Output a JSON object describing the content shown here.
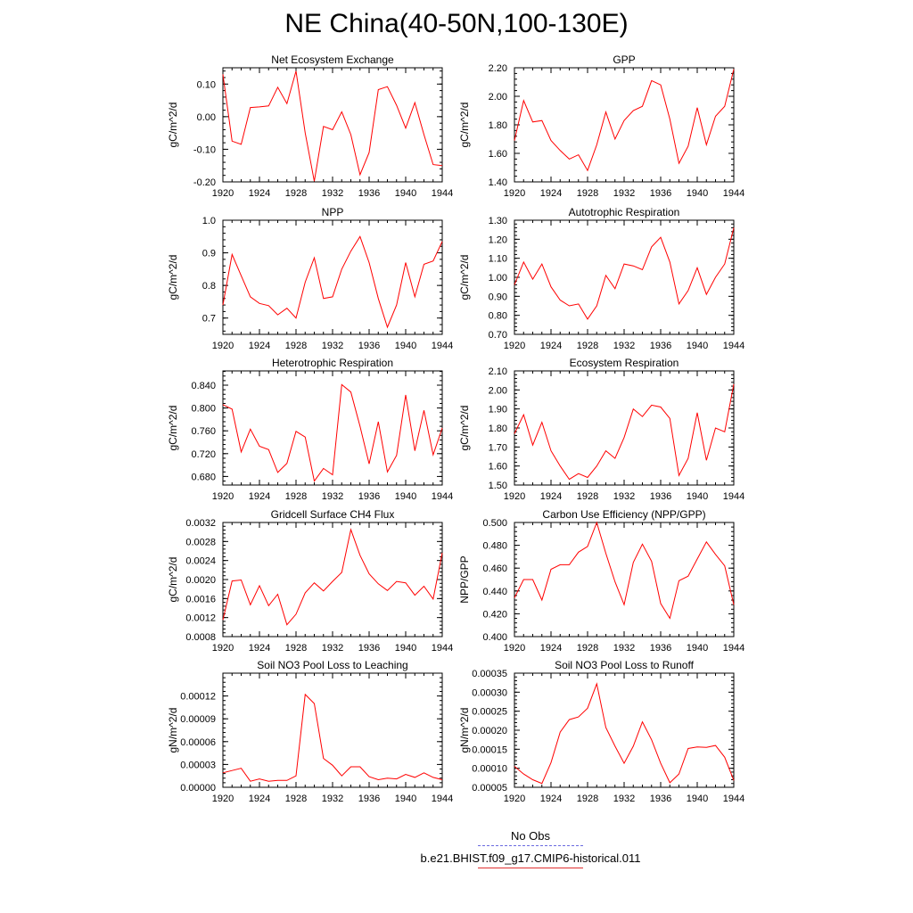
{
  "title": "NE China(40-50N,100-130E)",
  "colors": {
    "series": "#ff0000",
    "axis": "#000000",
    "obs": "#6a6ae0"
  },
  "legend": {
    "obs_label": "No Obs",
    "model_label": "b.e21.BHIST.f09_g17.CMIP6-historical.011"
  },
  "chart_data": [
    {
      "type": "line",
      "title": "Net Ecosystem Exchange",
      "ylabel": "gC/m^2/d",
      "xlim": [
        1920,
        1944
      ],
      "xticks": [
        "1920",
        "1924",
        "1928",
        "1932",
        "1936",
        "1940",
        "1944"
      ],
      "ylim": [
        -0.2,
        0.15
      ],
      "yticks": [
        "-0.20",
        "-0.10",
        "0.00",
        "0.10"
      ],
      "x": [
        1920,
        1921,
        1922,
        1923,
        1924,
        1925,
        1926,
        1927,
        1928,
        1929,
        1930,
        1931,
        1932,
        1933,
        1934,
        1935,
        1936,
        1937,
        1938,
        1939,
        1940,
        1941,
        1942,
        1943,
        1944
      ],
      "series": [
        {
          "name": "b.e21.BHIST.f09_g17.CMIP6-historical.011",
          "values": [
            0.13,
            -0.075,
            -0.085,
            0.028,
            0.03,
            0.033,
            0.09,
            0.04,
            0.14,
            -0.05,
            -0.198,
            -0.03,
            -0.04,
            0.015,
            -0.055,
            -0.178,
            -0.11,
            0.083,
            0.092,
            0.035,
            -0.035,
            0.043,
            -0.055,
            -0.147,
            -0.15
          ]
        }
      ]
    },
    {
      "type": "line",
      "title": "GPP",
      "ylabel": "gC/m^2/d",
      "xlim": [
        1920,
        1944
      ],
      "xticks": [
        "1920",
        "1924",
        "1928",
        "1932",
        "1936",
        "1940",
        "1944"
      ],
      "ylim": [
        1.4,
        2.2
      ],
      "yticks": [
        "1.40",
        "1.60",
        "1.80",
        "2.00",
        "2.20"
      ],
      "x": [
        1920,
        1921,
        1922,
        1923,
        1924,
        1925,
        1926,
        1927,
        1928,
        1929,
        1930,
        1931,
        1932,
        1933,
        1934,
        1935,
        1936,
        1937,
        1938,
        1939,
        1940,
        1941,
        1942,
        1943,
        1944
      ],
      "series": [
        {
          "name": "b.e21.BHIST.f09_g17.CMIP6-historical.011",
          "values": [
            1.69,
            1.97,
            1.82,
            1.83,
            1.69,
            1.62,
            1.56,
            1.59,
            1.48,
            1.66,
            1.89,
            1.7,
            1.83,
            1.9,
            1.93,
            2.11,
            2.08,
            1.84,
            1.53,
            1.65,
            1.92,
            1.66,
            1.86,
            1.93,
            2.19
          ]
        }
      ]
    },
    {
      "type": "line",
      "title": "NPP",
      "ylabel": "gC/m^2/d",
      "xlim": [
        1920,
        1944
      ],
      "xticks": [
        "1920",
        "1924",
        "1928",
        "1932",
        "1936",
        "1940",
        "1944"
      ],
      "ylim": [
        0.65,
        1.0
      ],
      "yticks": [
        "0.7",
        "0.8",
        "0.9",
        "1.0"
      ],
      "x": [
        1920,
        1921,
        1922,
        1923,
        1924,
        1925,
        1926,
        1927,
        1928,
        1929,
        1930,
        1931,
        1932,
        1933,
        1934,
        1935,
        1936,
        1937,
        1938,
        1939,
        1940,
        1941,
        1942,
        1943,
        1944
      ],
      "series": [
        {
          "name": "b.e21.BHIST.f09_g17.CMIP6-historical.011",
          "values": [
            0.74,
            0.895,
            0.83,
            0.765,
            0.745,
            0.738,
            0.71,
            0.73,
            0.7,
            0.81,
            0.885,
            0.76,
            0.765,
            0.85,
            0.905,
            0.95,
            0.87,
            0.76,
            0.672,
            0.74,
            0.87,
            0.765,
            0.865,
            0.875,
            0.935
          ]
        }
      ]
    },
    {
      "type": "line",
      "title": "Autotrophic Respiration",
      "ylabel": "gC/m^2/d",
      "xlim": [
        1920,
        1944
      ],
      "xticks": [
        "1920",
        "1924",
        "1928",
        "1932",
        "1936",
        "1940",
        "1944"
      ],
      "ylim": [
        0.7,
        1.3
      ],
      "yticks": [
        "0.70",
        "0.80",
        "0.90",
        "1.00",
        "1.10",
        "1.20",
        "1.30"
      ],
      "x": [
        1920,
        1921,
        1922,
        1923,
        1924,
        1925,
        1926,
        1927,
        1928,
        1929,
        1930,
        1931,
        1932,
        1933,
        1934,
        1935,
        1936,
        1937,
        1938,
        1939,
        1940,
        1941,
        1942,
        1943,
        1944
      ],
      "series": [
        {
          "name": "b.e21.BHIST.f09_g17.CMIP6-historical.011",
          "values": [
            0.96,
            1.08,
            0.99,
            1.07,
            0.95,
            0.88,
            0.85,
            0.86,
            0.78,
            0.85,
            1.01,
            0.94,
            1.07,
            1.06,
            1.04,
            1.16,
            1.21,
            1.08,
            0.86,
            0.93,
            1.05,
            0.91,
            1.0,
            1.07,
            1.26
          ]
        }
      ]
    },
    {
      "type": "line",
      "title": "Heterotrophic Respiration",
      "ylabel": "gC/m^2/d",
      "xlim": [
        1920,
        1944
      ],
      "xticks": [
        "1920",
        "1924",
        "1928",
        "1932",
        "1936",
        "1940",
        "1944"
      ],
      "ylim": [
        0.665,
        0.865
      ],
      "yticks": [
        "0.680",
        "0.720",
        "0.760",
        "0.800",
        "0.840"
      ],
      "x": [
        1920,
        1921,
        1922,
        1923,
        1924,
        1925,
        1926,
        1927,
        1928,
        1929,
        1930,
        1931,
        1932,
        1933,
        1934,
        1935,
        1936,
        1937,
        1938,
        1939,
        1940,
        1941,
        1942,
        1943,
        1944
      ],
      "series": [
        {
          "name": "b.e21.BHIST.f09_g17.CMIP6-historical.011",
          "values": [
            0.806,
            0.798,
            0.723,
            0.763,
            0.733,
            0.727,
            0.687,
            0.703,
            0.759,
            0.749,
            0.672,
            0.694,
            0.683,
            0.841,
            0.828,
            0.768,
            0.702,
            0.776,
            0.688,
            0.717,
            0.823,
            0.725,
            0.796,
            0.718,
            0.765
          ]
        }
      ]
    },
    {
      "type": "line",
      "title": "Ecosystem Respiration",
      "ylabel": "gC/m^2/d",
      "xlim": [
        1920,
        1944
      ],
      "xticks": [
        "1920",
        "1924",
        "1928",
        "1932",
        "1936",
        "1940",
        "1944"
      ],
      "ylim": [
        1.5,
        2.1
      ],
      "yticks": [
        "1.50",
        "1.60",
        "1.70",
        "1.80",
        "1.90",
        "2.00",
        "2.10"
      ],
      "x": [
        1920,
        1921,
        1922,
        1923,
        1924,
        1925,
        1926,
        1927,
        1928,
        1929,
        1930,
        1931,
        1932,
        1933,
        1934,
        1935,
        1936,
        1937,
        1938,
        1939,
        1940,
        1941,
        1942,
        1943,
        1944
      ],
      "series": [
        {
          "name": "b.e21.BHIST.f09_g17.CMIP6-historical.011",
          "values": [
            1.77,
            1.87,
            1.71,
            1.83,
            1.68,
            1.6,
            1.53,
            1.56,
            1.54,
            1.6,
            1.68,
            1.64,
            1.75,
            1.9,
            1.86,
            1.92,
            1.91,
            1.85,
            1.55,
            1.64,
            1.88,
            1.63,
            1.8,
            1.78,
            2.03
          ]
        }
      ]
    },
    {
      "type": "line",
      "title": "Gridcell Surface CH4 Flux",
      "ylabel": "gC/m^2/d",
      "xlim": [
        1920,
        1944
      ],
      "xticks": [
        "1920",
        "1924",
        "1928",
        "1932",
        "1936",
        "1940",
        "1944"
      ],
      "ylim": [
        0.0008,
        0.0032
      ],
      "yticks": [
        "0.0008",
        "0.0012",
        "0.0016",
        "0.0020",
        "0.0024",
        "0.0028",
        "0.0032"
      ],
      "x": [
        1920,
        1921,
        1922,
        1923,
        1924,
        1925,
        1926,
        1927,
        1928,
        1929,
        1930,
        1931,
        1932,
        1933,
        1934,
        1935,
        1936,
        1937,
        1938,
        1939,
        1940,
        1941,
        1942,
        1943,
        1944
      ],
      "series": [
        {
          "name": "b.e21.BHIST.f09_g17.CMIP6-historical.011",
          "values": [
            0.00115,
            0.00197,
            0.00199,
            0.00147,
            0.00187,
            0.00145,
            0.00169,
            0.00105,
            0.00127,
            0.00172,
            0.00193,
            0.00176,
            0.00196,
            0.00215,
            0.00305,
            0.00251,
            0.00212,
            0.00191,
            0.00177,
            0.00196,
            0.00193,
            0.00167,
            0.00186,
            0.00159,
            0.00256
          ]
        }
      ]
    },
    {
      "type": "line",
      "title": "Carbon Use Efficiency (NPP/GPP)",
      "ylabel": "NPP/GPP",
      "xlim": [
        1920,
        1944
      ],
      "xticks": [
        "1920",
        "1924",
        "1928",
        "1932",
        "1936",
        "1940",
        "1944"
      ],
      "ylim": [
        0.4,
        0.5
      ],
      "yticks": [
        "0.400",
        "0.420",
        "0.440",
        "0.460",
        "0.480",
        "0.500"
      ],
      "x": [
        1920,
        1921,
        1922,
        1923,
        1924,
        1925,
        1926,
        1927,
        1928,
        1929,
        1930,
        1931,
        1932,
        1933,
        1934,
        1935,
        1936,
        1937,
        1938,
        1939,
        1940,
        1941,
        1942,
        1943,
        1944
      ],
      "series": [
        {
          "name": "b.e21.BHIST.f09_g17.CMIP6-historical.011",
          "values": [
            0.434,
            0.45,
            0.45,
            0.432,
            0.459,
            0.463,
            0.463,
            0.474,
            0.479,
            0.5,
            0.473,
            0.448,
            0.428,
            0.465,
            0.481,
            0.466,
            0.429,
            0.416,
            0.449,
            0.453,
            0.468,
            0.483,
            0.472,
            0.462,
            0.428
          ]
        }
      ]
    },
    {
      "type": "line",
      "title": "Soil NO3 Pool Loss to Leaching",
      "ylabel": "gN/m^2/d",
      "xlim": [
        1920,
        1944
      ],
      "xticks": [
        "1920",
        "1924",
        "1928",
        "1932",
        "1936",
        "1940",
        "1944"
      ],
      "ylim": [
        0.0,
        0.00015
      ],
      "yticks": [
        "0.00000",
        "0.00003",
        "0.00006",
        "0.00009",
        "0.00012"
      ],
      "x": [
        1920,
        1921,
        1922,
        1923,
        1924,
        1925,
        1926,
        1927,
        1928,
        1929,
        1930,
        1931,
        1932,
        1933,
        1934,
        1935,
        1936,
        1937,
        1938,
        1939,
        1940,
        1941,
        1942,
        1943,
        1944
      ],
      "series": [
        {
          "name": "b.e21.BHIST.f09_g17.CMIP6-historical.011",
          "values": [
            1.9e-05,
            2.2e-05,
            2.5e-05,
            8e-06,
            1.1e-05,
            8e-06,
            9e-06,
            9e-06,
            1.5e-05,
            0.000122,
            0.00011,
            3.8e-05,
            2.9e-05,
            1.5e-05,
            2.7e-05,
            2.7e-05,
            1.4e-05,
            1e-05,
            1.2e-05,
            1.1e-05,
            1.7e-05,
            1.3e-05,
            1.9e-05,
            1.3e-05,
            1e-05
          ]
        }
      ]
    },
    {
      "type": "line",
      "title": "Soil NO3 Pool Loss to Runoff",
      "ylabel": "gN/m^2/d",
      "xlim": [
        1920,
        1944
      ],
      "xticks": [
        "1920",
        "1924",
        "1928",
        "1932",
        "1936",
        "1940",
        "1944"
      ],
      "ylim": [
        5e-05,
        0.00035
      ],
      "yticks": [
        "0.00005",
        "0.00010",
        "0.00015",
        "0.00020",
        "0.00025",
        "0.00030",
        "0.00035"
      ],
      "x": [
        1920,
        1921,
        1922,
        1923,
        1924,
        1925,
        1926,
        1927,
        1928,
        1929,
        1930,
        1931,
        1932,
        1933,
        1934,
        1935,
        1936,
        1937,
        1938,
        1939,
        1940,
        1941,
        1942,
        1943,
        1944
      ],
      "series": [
        {
          "name": "b.e21.BHIST.f09_g17.CMIP6-historical.011",
          "values": [
            0.000105,
            8.5e-05,
            7e-05,
            6e-05,
            0.000115,
            0.000195,
            0.000228,
            0.000235,
            0.000258,
            0.000322,
            0.000207,
            0.000158,
            0.000113,
            0.000158,
            0.000222,
            0.000175,
            0.000113,
            6.2e-05,
            8.5e-05,
            0.000152,
            0.000156,
            0.000155,
            0.00016,
            0.000129,
            6.8e-05
          ]
        }
      ]
    }
  ]
}
